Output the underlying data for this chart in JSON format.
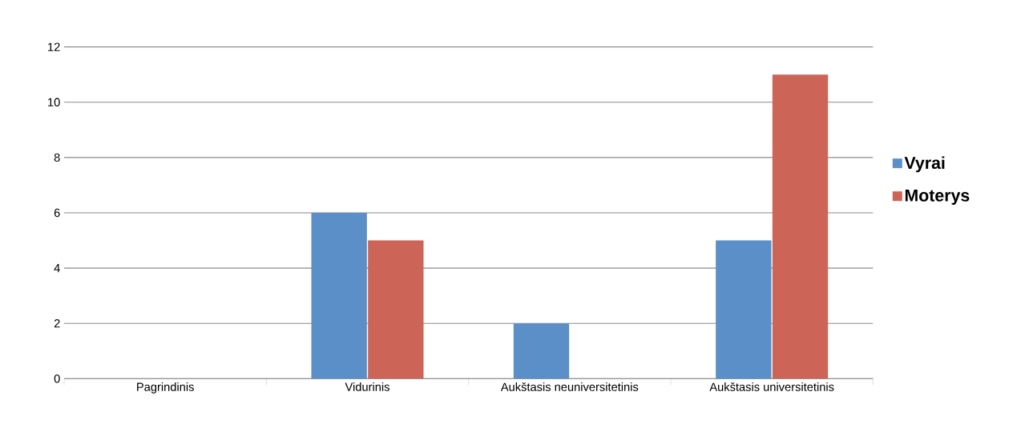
{
  "chart_data": {
    "type": "bar",
    "categories": [
      "Pagrindinis",
      "Vidurinis",
      "Aukštasis neuniversitetinis",
      "Aukštasis universitetinis"
    ],
    "series": [
      {
        "name": "Vyrai",
        "color": "#5b8fc7",
        "values": [
          0,
          6,
          2,
          5
        ]
      },
      {
        "name": "Moterys",
        "color": "#cc6558",
        "values": [
          0,
          5,
          0,
          11
        ]
      }
    ],
    "ylim": [
      0,
      12
    ],
    "yticks": [
      0,
      2,
      4,
      6,
      8,
      10,
      12
    ],
    "grid": "y",
    "legend": "right"
  }
}
